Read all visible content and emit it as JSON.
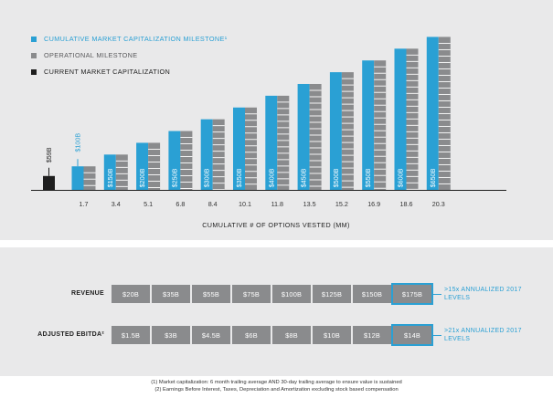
{
  "legend": [
    {
      "label": "CUMULATIVE MARKET CAPITALIZATION MILESTONE¹",
      "color": "#2aa0d4"
    },
    {
      "label": "OPERATIONAL MILESTONE",
      "color": "#8a8b8d"
    },
    {
      "label": "CURRENT MARKET CAPITALIZATION",
      "color": "#1e1e1e"
    }
  ],
  "chart_data": {
    "type": "bar",
    "xlabel": "CUMULATIVE # OF OPTIONS VESTED (MM)",
    "current": {
      "label": "$59B",
      "value": 59
    },
    "categories": [
      "1.7",
      "3.4",
      "5.1",
      "6.8",
      "8.4",
      "10.1",
      "11.8",
      "13.5",
      "15.2",
      "16.9",
      "18.6",
      "20.3"
    ],
    "market_cap_labels": [
      "$100B",
      "$150B",
      "$200B",
      "$250B",
      "$300B",
      "$350B",
      "$400B",
      "$450B",
      "$500B",
      "$550B",
      "$600B",
      "$650B"
    ],
    "market_cap_values": [
      100,
      150,
      200,
      250,
      300,
      350,
      400,
      450,
      500,
      550,
      600,
      650
    ],
    "colors": {
      "market_cap": "#2aa0d4",
      "operational": "#8a8b8d",
      "current": "#1e1e1e"
    }
  },
  "table": {
    "rows": [
      {
        "label": "REVENUE",
        "values": [
          "$20B",
          "$35B",
          "$55B",
          "$75B",
          "$100B",
          "$125B",
          "$150B",
          "$175B"
        ],
        "note": ">15x ANNUALIZED 2017 LEVELS"
      },
      {
        "label": "ADJUSTED EBITDA²",
        "values": [
          "$1.5B",
          "$3B",
          "$4.5B",
          "$6B",
          "$8B",
          "$10B",
          "$12B",
          "$14B"
        ],
        "note": ">21x ANNUALIZED 2017 LEVELS"
      }
    ]
  },
  "footnotes": [
    "(1) Market capitalization: 6 month trailing average AND 30-day trailing average to ensure value is sustained",
    "(2) Earnings Before Interest, Taxes, Depreciation and Amortization excluding stock based compensation"
  ]
}
